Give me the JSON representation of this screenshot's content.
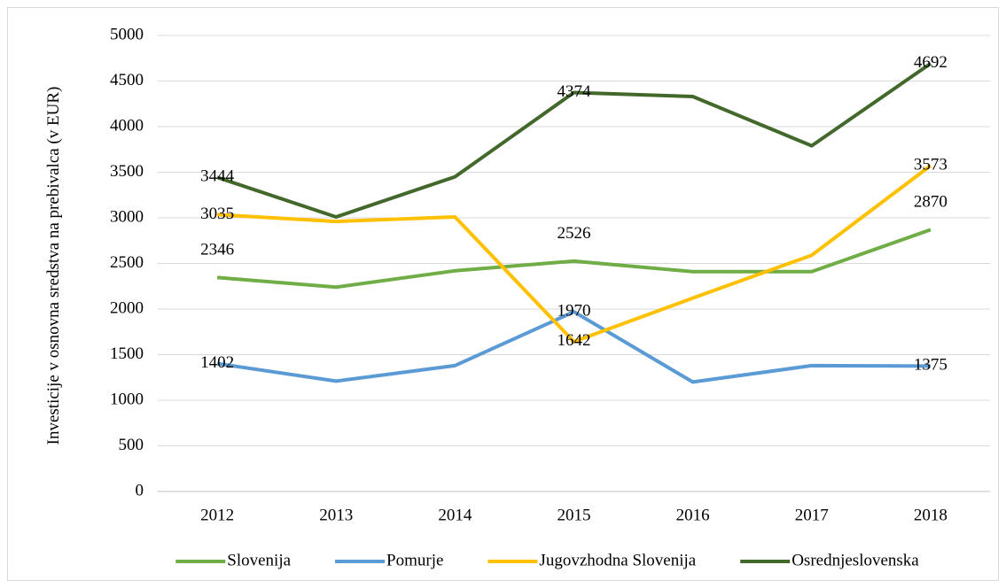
{
  "chart_data": {
    "type": "line",
    "y_label": "Investicije v osnovna sredstva na prebivalca (v EUR)",
    "categories": [
      "2012",
      "2013",
      "2014",
      "2015",
      "2016",
      "2017",
      "2018"
    ],
    "series": [
      {
        "name": "Slovenija",
        "color": "#70ad47",
        "values": [
          2346,
          2240,
          2420,
          2526,
          2410,
          2410,
          2870
        ],
        "value_labels": [
          "2346",
          null,
          null,
          "2526",
          null,
          null,
          "2870"
        ]
      },
      {
        "name": "Pomurje",
        "color": "#5b9bd5",
        "values": [
          1402,
          1210,
          1380,
          1970,
          1200,
          1380,
          1375
        ],
        "value_labels": [
          "1402",
          null,
          null,
          "1970",
          null,
          null,
          "1375"
        ]
      },
      {
        "name": "Jugovzhodna Slovenija",
        "color": "#ffc000",
        "values": [
          3035,
          2960,
          3010,
          1642,
          2120,
          2590,
          3573
        ],
        "value_labels": [
          "3035",
          null,
          null,
          "1642",
          null,
          null,
          "3573"
        ]
      },
      {
        "name": "Osrednjeslovenska",
        "color": "#43682b",
        "values": [
          3444,
          3010,
          3450,
          4374,
          4330,
          3790,
          4692
        ],
        "value_labels": [
          "3444",
          null,
          null,
          "4374",
          null,
          null,
          "4692"
        ]
      }
    ],
    "ylim": [
      0,
      5000
    ],
    "yticks": [
      0,
      500,
      1000,
      1500,
      2000,
      2500,
      3000,
      3500,
      4000,
      4500,
      5000
    ],
    "grid": true,
    "legend": "bottom"
  }
}
